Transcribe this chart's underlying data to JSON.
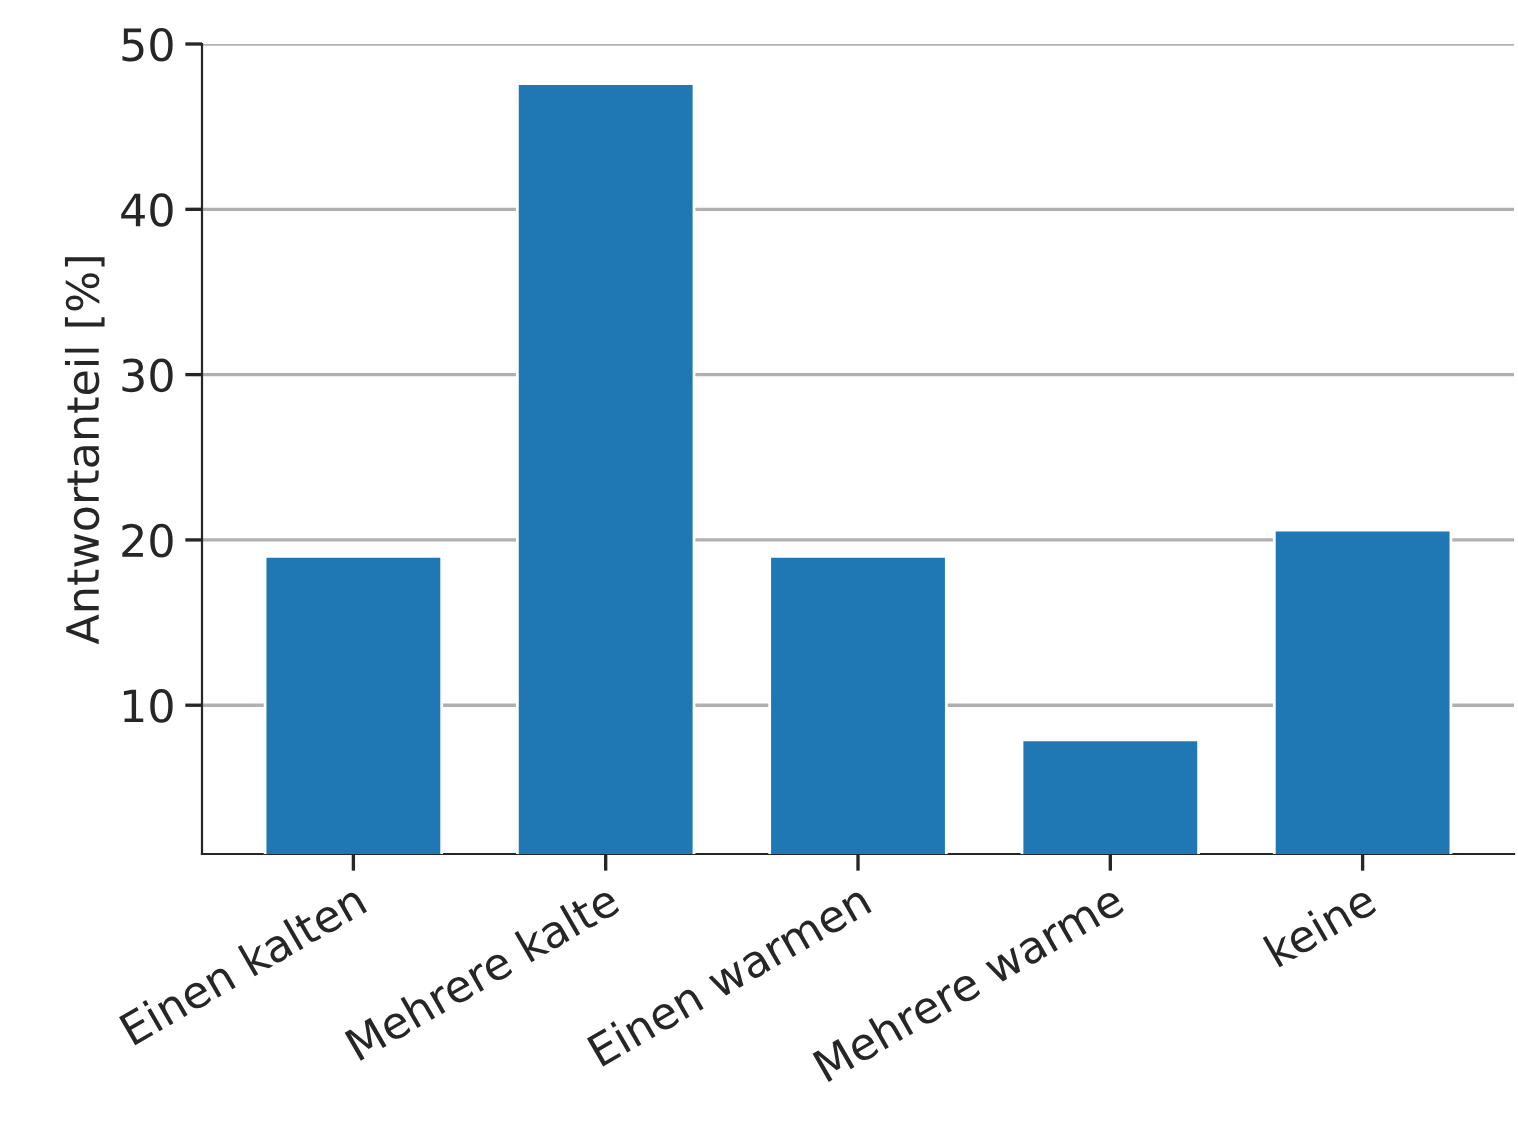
{
  "chart_data": {
    "type": "bar",
    "ylabel": "Antwortanteil [%]",
    "categories": [
      "Einen kalten",
      "Mehrere kalte",
      "Einen warmen",
      "Mehrere warme",
      "keine"
    ],
    "values": [
      19.0,
      47.6,
      19.0,
      7.9,
      20.6
    ],
    "color": "#1f77b4",
    "ylim": [
      1,
      50
    ],
    "yticks": [
      10,
      20,
      30,
      40,
      50
    ],
    "grid": "y"
  }
}
